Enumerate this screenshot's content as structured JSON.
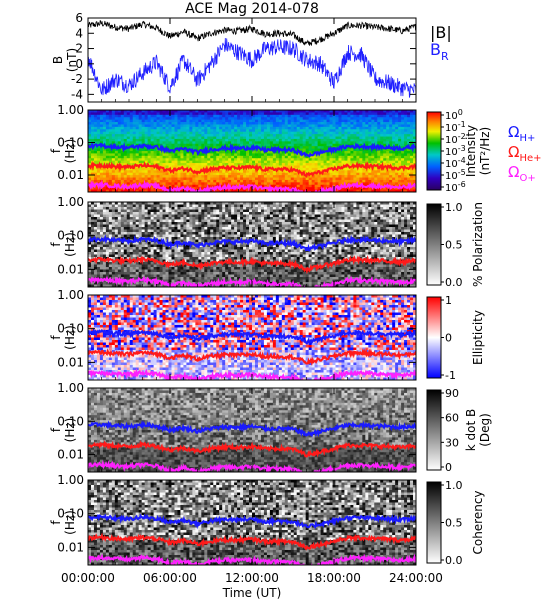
{
  "title": "ACE Mag 2014-078",
  "xaxis": {
    "label": "Time (UT)",
    "ticks": [
      "00:00:00",
      "06:00:00",
      "12:00:00",
      "18:00:00",
      "24:00:00"
    ]
  },
  "legend": {
    "b_abs": "|B|",
    "b_r": "B",
    "b_r_sub": "R",
    "omega": "Ω",
    "h_sub": "H+",
    "he_sub": "He+",
    "o_sub": "O+"
  },
  "colors": {
    "b_abs": "#000000",
    "b_r": "#2020ff",
    "h": "#1a1aff",
    "he": "#ff1a1a",
    "o": "#ff20ff"
  },
  "panels": [
    {
      "id": "bfield",
      "type": "line",
      "ylabel": [
        "B",
        "(nT)"
      ],
      "yticks": [
        "6",
        "4",
        "2",
        "0",
        "-2",
        "-4"
      ],
      "ylim": [
        -5,
        6
      ]
    },
    {
      "id": "intensity",
      "type": "heatmap",
      "colormap": "rainbow",
      "ylabel": [
        "f",
        "(Hz)"
      ],
      "yticks": [
        "1.00",
        "0.10",
        "0.01"
      ],
      "cbar_label": [
        "Intensity",
        "(nT²/Hz)"
      ],
      "cbar_ticks": [
        {
          "base": "10",
          "exp": "0"
        },
        {
          "base": "10",
          "exp": "-1"
        },
        {
          "base": "10",
          "exp": "-2"
        },
        {
          "base": "10",
          "exp": "-3"
        },
        {
          "base": "10",
          "exp": "-4"
        },
        {
          "base": "10",
          "exp": "-5"
        },
        {
          "base": "10",
          "exp": "-6"
        }
      ]
    },
    {
      "id": "polarization",
      "type": "heatmap",
      "colormap": "gray",
      "ylabel": [
        "f",
        "(Hz)"
      ],
      "yticks": [
        "1.00",
        "0.10",
        "0.01"
      ],
      "cbar_label": [
        "% Polarization"
      ],
      "cbar_ticks": [
        "1.0",
        "0.5",
        "0.0"
      ]
    },
    {
      "id": "ellipticity",
      "type": "heatmap",
      "colormap": "bwr",
      "ylabel": [
        "f",
        "(Hz)"
      ],
      "yticks": [
        "1.00",
        "0.10",
        "0.01"
      ],
      "cbar_label": [
        "Ellipticity"
      ],
      "cbar_ticks": [
        "1",
        "0",
        "-1"
      ]
    },
    {
      "id": "kdotb",
      "type": "heatmap",
      "colormap": "gray",
      "ylabel": [
        "f",
        "(Hz)"
      ],
      "yticks": [
        "1.00",
        "0.10",
        "0.01"
      ],
      "cbar_label": [
        "k dot B",
        "(Deg)"
      ],
      "cbar_ticks": [
        "90",
        "60",
        "30",
        "0"
      ]
    },
    {
      "id": "coherency",
      "type": "heatmap",
      "colormap": "gray",
      "ylabel": [
        "f",
        "(Hz)"
      ],
      "yticks": [
        "1.00",
        "0.10",
        "0.01"
      ],
      "cbar_label": [
        "Coherency"
      ],
      "cbar_ticks": [
        "1.0",
        "0.5",
        "0.0"
      ]
    }
  ],
  "chart_data": {
    "type": "heatmap",
    "title": "ACE Mag 2014-078",
    "xlabel": "Time (UT)",
    "x_hours": [
      0,
      1,
      2,
      3,
      4,
      5,
      6,
      7,
      8,
      9,
      10,
      11,
      12,
      13,
      14,
      15,
      16,
      17,
      18,
      19,
      20,
      21,
      22,
      23,
      24
    ],
    "xlim_hours": [
      0,
      24
    ],
    "b_series": [
      {
        "name": "|B|",
        "values": [
          5.0,
          5.3,
          4.8,
          4.6,
          5.2,
          4.7,
          3.6,
          4.2,
          3.3,
          4.0,
          4.4,
          4.3,
          4.6,
          3.9,
          4.0,
          3.8,
          2.6,
          3.2,
          4.0,
          5.0,
          5.0,
          4.8,
          4.6,
          4.3,
          4.9
        ]
      },
      {
        "name": "B_R",
        "values": [
          1.0,
          -3.5,
          -2.0,
          -2.8,
          -1.2,
          0.2,
          -3.0,
          0.5,
          -2.2,
          0.0,
          2.5,
          1.5,
          0.5,
          2.0,
          2.2,
          2.0,
          0.5,
          0.0,
          -2.5,
          1.5,
          1.2,
          -2.0,
          -2.5,
          -3.2,
          -3.5
        ]
      }
    ],
    "gyro_series_hz": [
      {
        "name": "H+",
        "values": [
          0.077,
          0.08,
          0.073,
          0.07,
          0.079,
          0.072,
          0.055,
          0.064,
          0.05,
          0.061,
          0.067,
          0.066,
          0.07,
          0.059,
          0.061,
          0.058,
          0.04,
          0.049,
          0.061,
          0.076,
          0.076,
          0.073,
          0.07,
          0.066,
          0.075
        ]
      },
      {
        "name": "He+",
        "values": [
          0.019,
          0.02,
          0.0183,
          0.0175,
          0.0198,
          0.0179,
          0.0137,
          0.016,
          0.0126,
          0.0152,
          0.0168,
          0.0164,
          0.0175,
          0.0149,
          0.0152,
          0.0145,
          0.0099,
          0.0122,
          0.0152,
          0.019,
          0.019,
          0.0183,
          0.0175,
          0.0164,
          0.0187
        ]
      },
      {
        "name": "O+",
        "values": [
          0.0048,
          0.005,
          0.0046,
          0.0044,
          0.005,
          0.0045,
          0.0034,
          0.004,
          0.0031,
          0.0038,
          0.0042,
          0.0041,
          0.0044,
          0.0037,
          0.0038,
          0.0036,
          0.0025,
          0.0031,
          0.0038,
          0.0048,
          0.0048,
          0.0046,
          0.0044,
          0.0041,
          0.0047
        ]
      }
    ],
    "freq_ylim_hz": [
      0.003,
      1.0
    ],
    "b_ylim_nT": [
      -5,
      6
    ]
  }
}
